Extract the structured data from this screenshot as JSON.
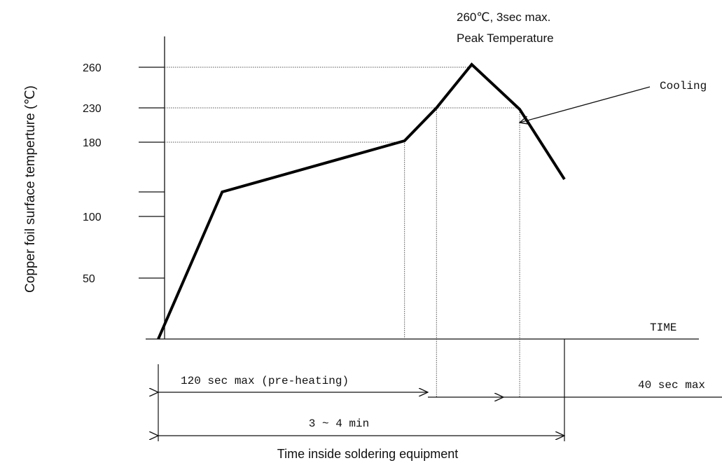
{
  "chart_data": {
    "type": "line",
    "title": "",
    "xlabel": "Time inside soldering equipment",
    "ylabel": "Copper foil surface temperture (℃)",
    "x_axis_end_label": "TIME",
    "yticks": [
      {
        "value": 260,
        "label": "260"
      },
      {
        "value": 230,
        "label": "230"
      },
      {
        "value": 180,
        "label": "180"
      },
      {
        "value": 100,
        "label": "100"
      },
      {
        "value": 50,
        "label": "50"
      }
    ],
    "unlabeled_tick_value": 125,
    "series": [
      {
        "points": [
          {
            "x": 0,
            "y": 0
          },
          {
            "x": 20,
            "y": 125
          },
          {
            "x": 77,
            "y": 182
          },
          {
            "x": 87,
            "y": 230
          },
          {
            "x": 98,
            "y": 262
          },
          {
            "x": 113,
            "y": 228
          },
          {
            "x": 127,
            "y": 139
          }
        ]
      }
    ],
    "annotations": {
      "peak_line1": "260℃, 3sec max.",
      "peak_line2": "Peak Temperature",
      "cooling": "Cooling",
      "preheat": "120 sec max (pre-heating)",
      "cool_time": "40 sec max",
      "total_time": "3 ~ 4 min"
    },
    "grid": false
  }
}
